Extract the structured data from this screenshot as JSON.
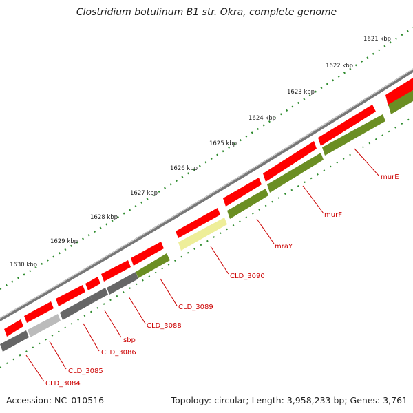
{
  "title": "Clostridium botulinum B1 str. Okra, complete genome",
  "footer": {
    "accession": "Accession: NC_010516",
    "summary": "Topology: circular; Length: 3,958,233 bp; Genes: 3,761"
  },
  "scale_labels": [
    "1621 kbp",
    "1622 kbp",
    "1623 kbp",
    "1624 kbp",
    "1625 kbp",
    "1626 kbp",
    "1627 kbp",
    "1628 kbp",
    "1629 kbp",
    "1630 kbp"
  ],
  "gene_labels": [
    "murE",
    "murF",
    "mraY",
    "CLD_3090",
    "CLD_3089",
    "CLD_3088",
    "sbp",
    "CLD_3086",
    "CLD_3085",
    "CLD_3084"
  ],
  "colors": {
    "backbone": "#888888",
    "forward_feature": "#ff0000",
    "reverse_gene_green": "#6b8e23",
    "reverse_gene_dark": "#666666",
    "reverse_gene_light": "#bbbbbb",
    "highlight_gene": "#eeee99",
    "tick": "#2e8b2e",
    "label": "#cc0000"
  }
}
